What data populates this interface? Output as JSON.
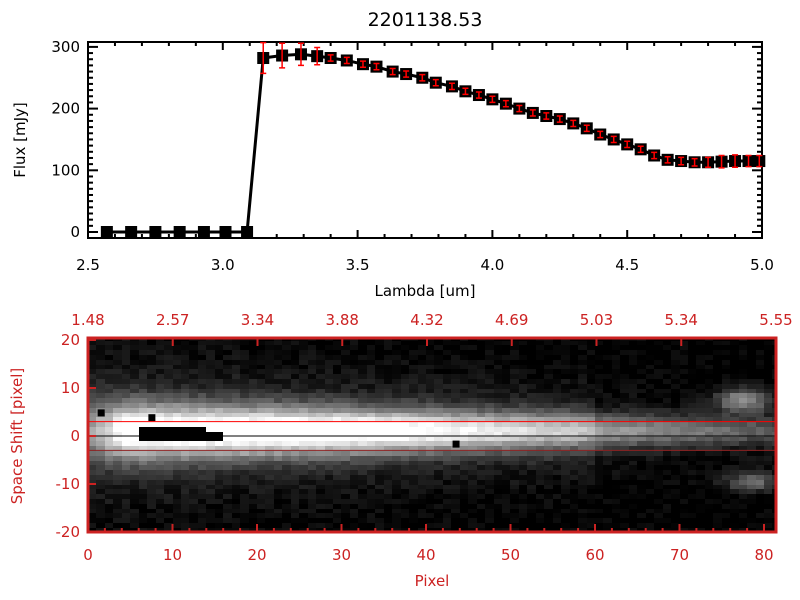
{
  "chart_data": [
    {
      "type": "line",
      "title": "2201138.53",
      "xlabel": "Lambda [um]",
      "ylabel": "Flux [mJy]",
      "xlim": [
        2.5,
        5.0
      ],
      "ylim": [
        -10,
        310
      ],
      "xticks": [
        "2.5",
        "3.0",
        "3.5",
        "4.0",
        "4.5",
        "5.0"
      ],
      "yticks": [
        "0",
        "100",
        "200",
        "300"
      ],
      "grid": false,
      "colors": {
        "line": "#000000",
        "marker": "#000000",
        "errorbar": "#ff0000"
      },
      "x": [
        2.57,
        2.66,
        2.75,
        2.84,
        2.93,
        3.01,
        3.09,
        3.15,
        3.22,
        3.29,
        3.35,
        3.4,
        3.46,
        3.52,
        3.57,
        3.63,
        3.68,
        3.74,
        3.79,
        3.85,
        3.9,
        3.95,
        4.0,
        4.05,
        4.1,
        4.15,
        4.2,
        4.25,
        4.3,
        4.35,
        4.4,
        4.45,
        4.5,
        4.55,
        4.6,
        4.65,
        4.7,
        4.75,
        4.8,
        4.85,
        4.9,
        4.95,
        4.99
      ],
      "y": [
        0,
        0,
        0,
        0,
        0,
        0,
        0,
        282,
        286,
        288,
        285,
        282,
        278,
        272,
        268,
        260,
        256,
        250,
        242,
        236,
        228,
        222,
        215,
        208,
        200,
        193,
        188,
        183,
        176,
        168,
        158,
        150,
        142,
        134,
        124,
        117,
        115,
        113,
        113,
        114,
        115,
        115,
        115
      ],
      "yerr": [
        0,
        0,
        0,
        0,
        0,
        0,
        0,
        25,
        20,
        18,
        14,
        5,
        5,
        5,
        5,
        5,
        5,
        5,
        5,
        5,
        5,
        5,
        5,
        5,
        5,
        5,
        5,
        5,
        5,
        5,
        5,
        5,
        5,
        5,
        5,
        5,
        6,
        6,
        8,
        10,
        10,
        9,
        9
      ]
    },
    {
      "type": "heatmap",
      "xlabel": "Pixel",
      "ylabel": "Space Shift [pixel]",
      "xlim": [
        0,
        81
      ],
      "ylim": [
        -20,
        20
      ],
      "xticks": [
        "0",
        "10",
        "20",
        "30",
        "40",
        "50",
        "60",
        "70",
        "80"
      ],
      "yticks": [
        "-20",
        "-10",
        "0",
        "10",
        "20"
      ],
      "top_xticks": [
        "1.48",
        "2.57",
        "3.34",
        "3.88",
        "4.32",
        "4.69",
        "5.03",
        "5.34",
        "5.55"
      ],
      "colormap": "grayscale",
      "lines": [
        {
          "y": 3,
          "color": "#ff0000"
        },
        {
          "y": 0,
          "color": "#000000"
        },
        {
          "y": -3,
          "color": "#8b2020"
        }
      ],
      "axis_color": "#cc2222"
    }
  ]
}
